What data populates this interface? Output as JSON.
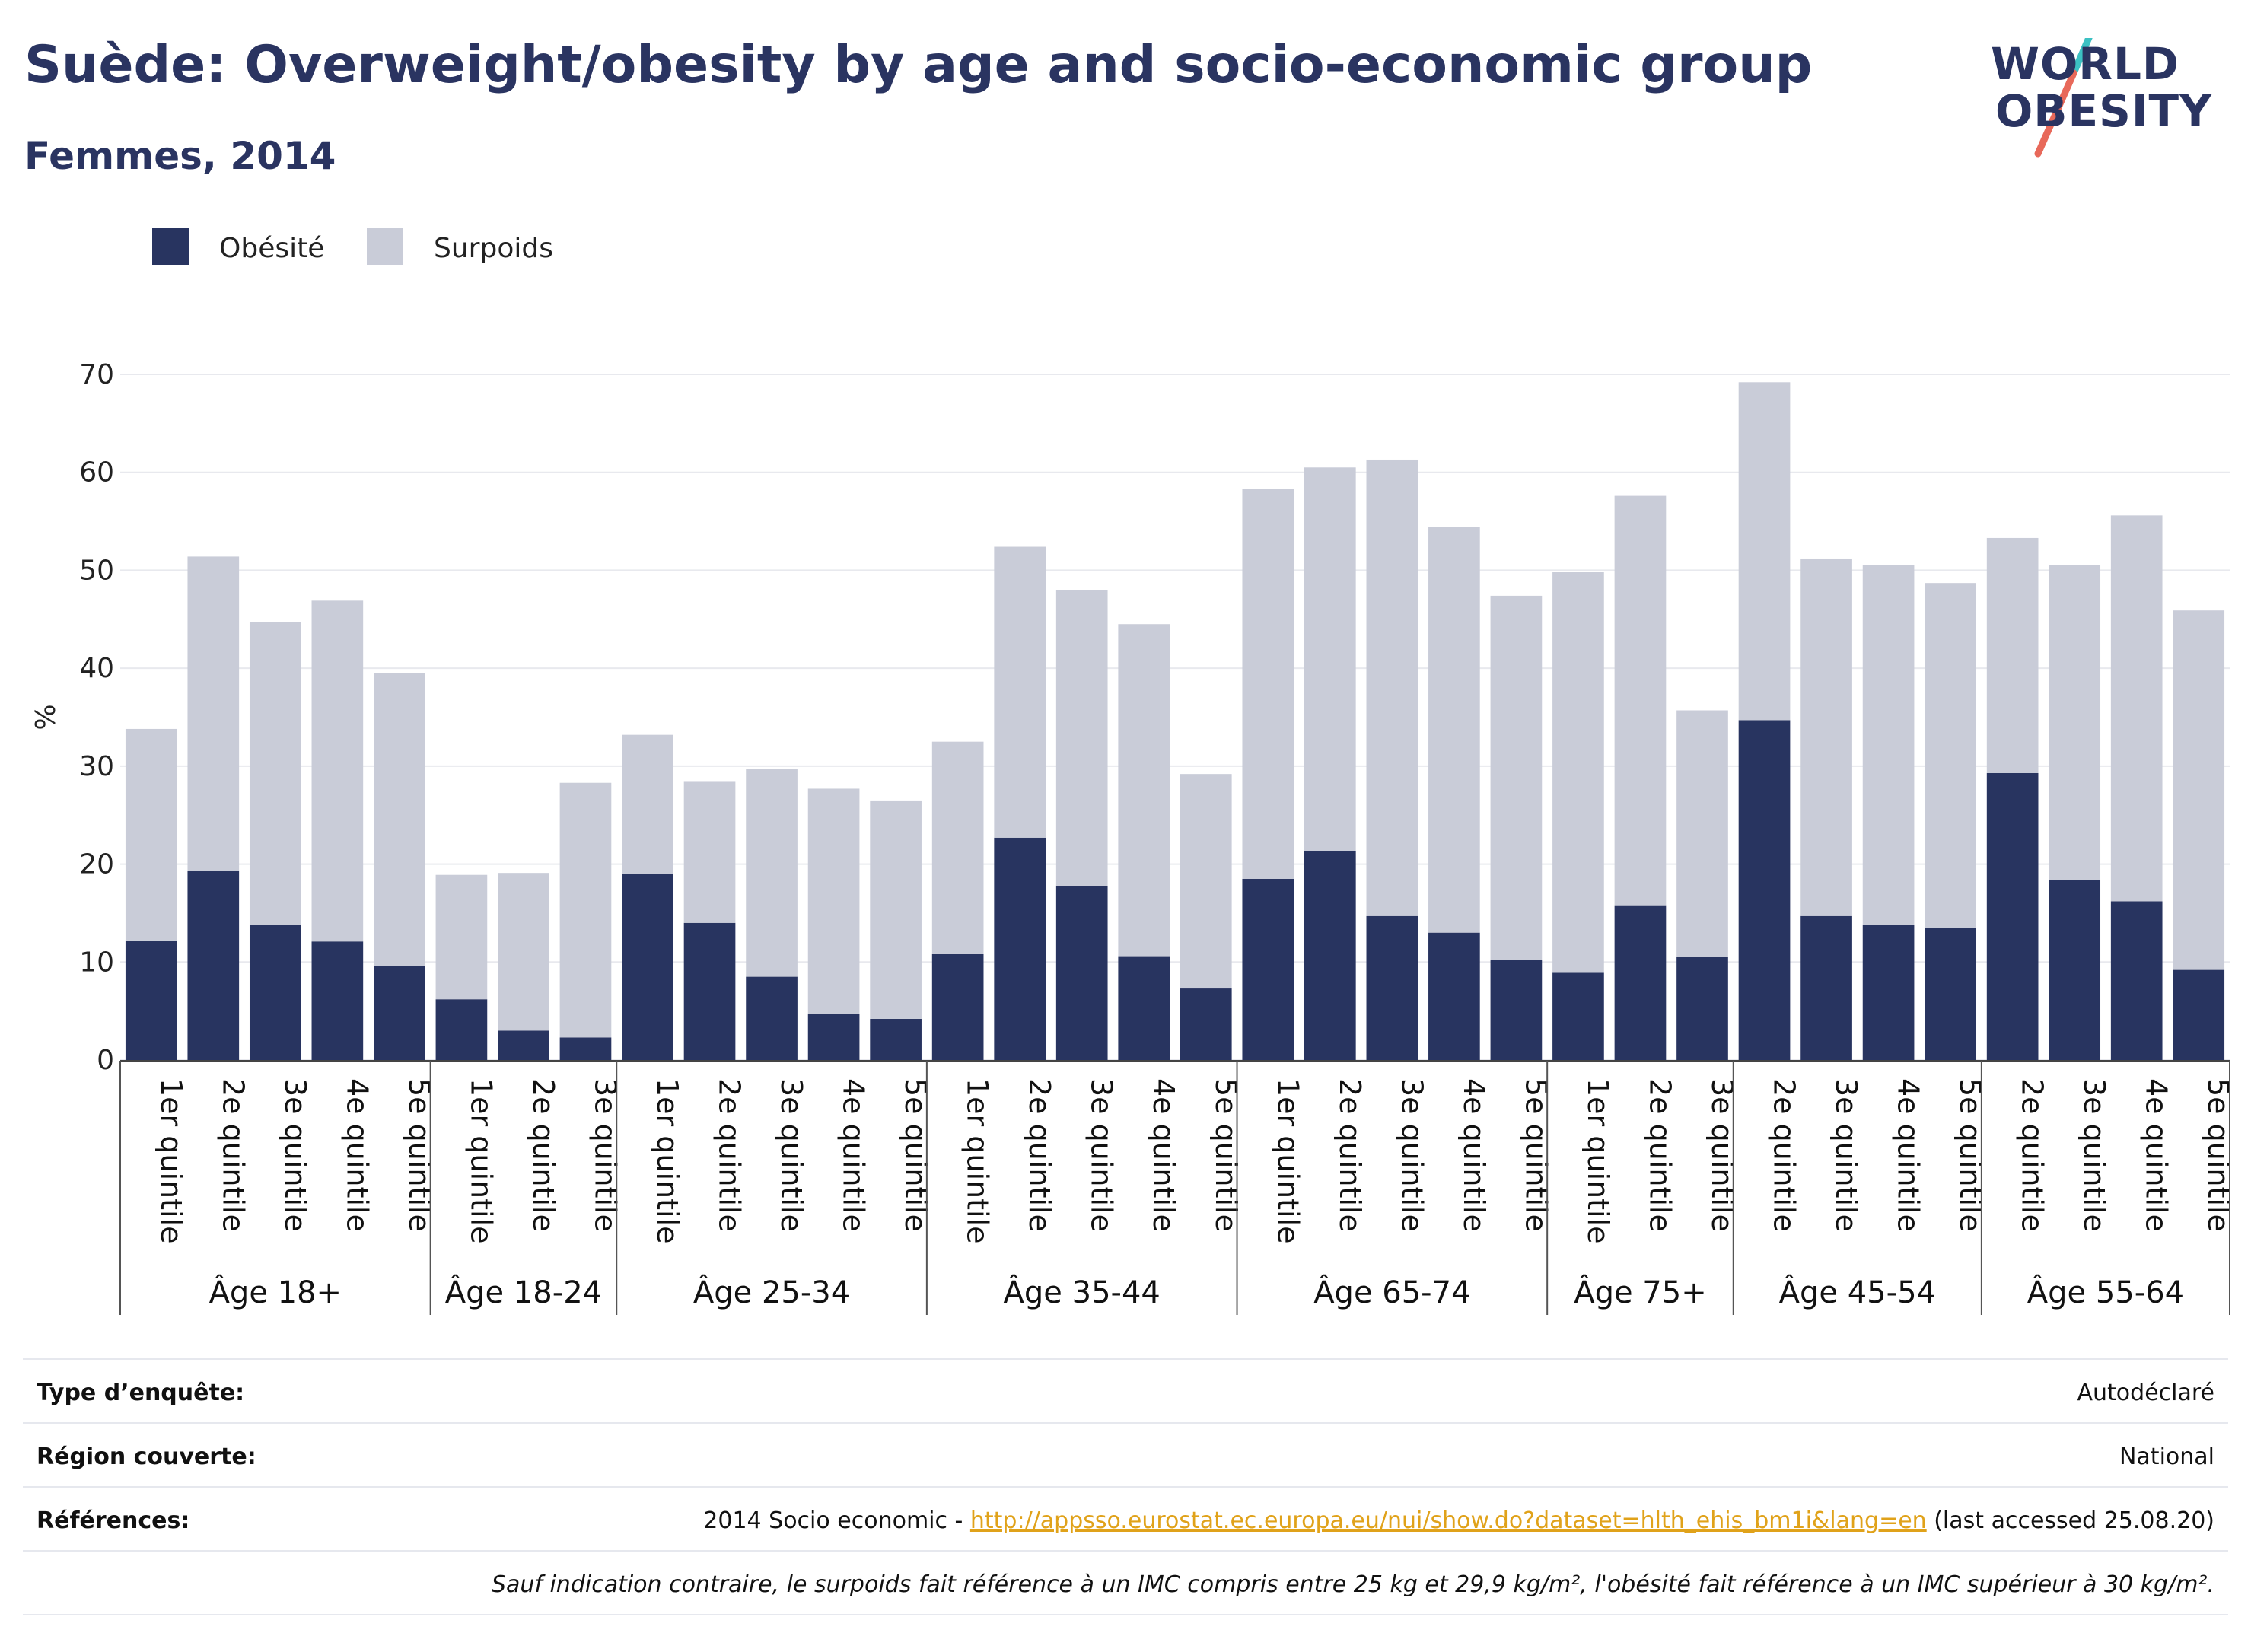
{
  "title": "Suède: Overweight/obesity by age and socio-economic group",
  "subtitle": "Femmes, 2014",
  "logo": {
    "line1": "WORLD",
    "line2": "OBESITY"
  },
  "colors": {
    "obesity": "#283460",
    "overweight": "#c9ccd8",
    "grid": "#e8e9ee",
    "accent_teal": "#3cc1c3",
    "accent_coral": "#e8695a"
  },
  "chart_data": {
    "type": "bar",
    "stacked": true,
    "ylabel": "%",
    "ylim": [
      0,
      70
    ],
    "yticks": [
      0,
      10,
      20,
      30,
      40,
      50,
      60,
      70
    ],
    "grid": true,
    "legend_position": "top-left",
    "series": [
      {
        "name": "Obésité",
        "color": "#283460",
        "values": [
          12.2,
          19.3,
          13.8,
          12.1,
          9.6,
          6.2,
          3.0,
          2.3,
          19.0,
          14.0,
          8.5,
          4.7,
          4.2,
          10.8,
          22.7,
          17.8,
          10.6,
          7.3,
          18.5,
          21.3,
          14.7,
          13.0,
          10.2,
          8.9,
          15.8,
          10.5,
          34.7,
          14.7,
          13.8,
          13.5,
          29.3,
          18.4,
          16.2,
          9.2
        ]
      },
      {
        "name": "Surpoids",
        "color": "#c9ccd8",
        "values": [
          21.6,
          32.1,
          30.9,
          34.8,
          29.9,
          12.7,
          16.1,
          26.0,
          14.2,
          14.4,
          21.2,
          23.0,
          22.3,
          21.7,
          29.7,
          30.2,
          33.9,
          21.9,
          39.8,
          39.2,
          46.6,
          41.4,
          37.2,
          40.9,
          41.8,
          25.2,
          34.5,
          36.5,
          36.7,
          35.2,
          24.0,
          32.1,
          39.4,
          36.7
        ]
      }
    ],
    "groups": [
      {
        "label": "Âge 18+",
        "categories": [
          "1er quintile",
          "2e quintile",
          "3e quintile",
          "4e quintile",
          "5e quintile"
        ]
      },
      {
        "label": "Âge 18-24",
        "categories": [
          "1er quintile",
          "2e quintile",
          "3e quintile"
        ]
      },
      {
        "label": "Âge 25-34",
        "categories": [
          "1er quintile",
          "2e quintile",
          "3e quintile",
          "4e quintile",
          "5e quintile"
        ]
      },
      {
        "label": "Âge 35-44",
        "categories": [
          "1er quintile",
          "2e quintile",
          "3e quintile",
          "4e quintile",
          "5e quintile"
        ]
      },
      {
        "label": "Âge 65-74",
        "categories": [
          "1er quintile",
          "2e quintile",
          "3e quintile",
          "4e quintile",
          "5e quintile"
        ]
      },
      {
        "label": "Âge 75+",
        "categories": [
          "1er quintile",
          "2e quintile",
          "3e quintile"
        ]
      },
      {
        "label": "Âge 45-54",
        "categories": [
          "2e quintile",
          "3e quintile",
          "4e quintile",
          "5e quintile"
        ]
      },
      {
        "label": "Âge 55-64",
        "categories": [
          "2e quintile",
          "3e quintile",
          "4e quintile",
          "5e quintile"
        ]
      }
    ]
  },
  "meta": {
    "survey_type_label": "Type d’enquête:",
    "survey_type_value": "Autodéclaré",
    "region_label": "Région couverte:",
    "region_value": "National",
    "references_label": "Références:",
    "references_prefix": "2014 Socio economic - ",
    "references_link": "http://appsso.eurostat.ec.europa.eu/nui/show.do?dataset=hlth_ehis_bm1i&lang=en",
    "references_suffix": " (last accessed 25.08.20)",
    "note": "Sauf indication contraire, le surpoids fait référence à un IMC compris entre 25 kg et 29,9 kg/m², l'obésité fait référence à un IMC supérieur à 30 kg/m²."
  }
}
